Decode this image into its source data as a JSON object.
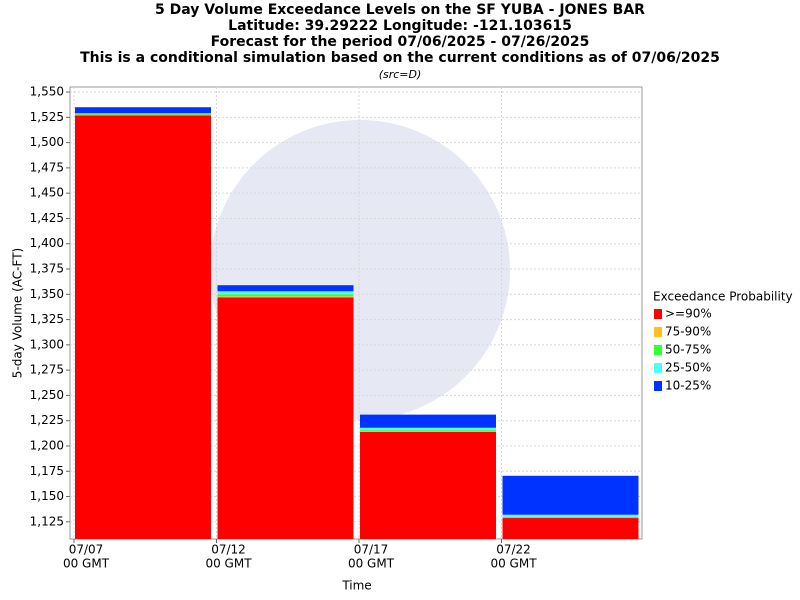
{
  "chart_data": {
    "type": "bar",
    "title": [
      "5 Day Volume Exceedance Levels on the SF YUBA - JONES BAR",
      "Latitude: 39.29222 Longitude: -121.103615",
      "Forecast for the period 07/06/2025 - 07/26/2025",
      "This is a conditional simulation based on the current conditions as of 07/06/2025"
    ],
    "subtitle": "(src=D)",
    "y_label": "5-day Volume (AC-FT)",
    "x_label": "Time",
    "categories": [
      "07/07",
      "07/12",
      "07/17",
      "07/22"
    ],
    "category_sublabel": "00 GMT",
    "legend_title": "Exceedance Probability",
    "series": [
      {
        "name": ">=90%",
        "color": "#ff0000",
        "values": [
          1527,
          1347,
          1214,
          1129
        ]
      },
      {
        "name": "75-90%",
        "color": "#ffc020",
        "values": [
          1528,
          1348,
          1215,
          1129.5
        ]
      },
      {
        "name": "50-75%",
        "color": "#33ff33",
        "values": [
          1528.5,
          1350,
          1216,
          1130
        ]
      },
      {
        "name": "25-50%",
        "color": "#4dffff",
        "values": [
          1529,
          1353,
          1218,
          1132
        ]
      },
      {
        "name": "10-25%",
        "color": "#0033ff",
        "values": [
          1535,
          1359,
          1231,
          1170.5
        ]
      }
    ],
    "ylim": [
      1108,
      1555
    ],
    "yticks": [
      {
        "value": 1125,
        "label": "1,125"
      },
      {
        "value": 1150,
        "label": "1,150"
      },
      {
        "value": 1175,
        "label": "1,175"
      },
      {
        "value": 1200,
        "label": "1,200"
      },
      {
        "value": 1225,
        "label": "1,225"
      },
      {
        "value": 1250,
        "label": "1,250"
      },
      {
        "value": 1275,
        "label": "1,275"
      },
      {
        "value": 1300,
        "label": "1,300"
      },
      {
        "value": 1325,
        "label": "1,325"
      },
      {
        "value": 1350,
        "label": "1,350"
      },
      {
        "value": 1375,
        "label": "1,375"
      },
      {
        "value": 1400,
        "label": "1,400"
      },
      {
        "value": 1425,
        "label": "1,425"
      },
      {
        "value": 1450,
        "label": "1,450"
      },
      {
        "value": 1475,
        "label": "1,475"
      },
      {
        "value": 1500,
        "label": "1,500"
      },
      {
        "value": 1525,
        "label": "1,525"
      },
      {
        "value": 1550,
        "label": "1,550"
      }
    ],
    "grid": true,
    "legend": "right"
  }
}
